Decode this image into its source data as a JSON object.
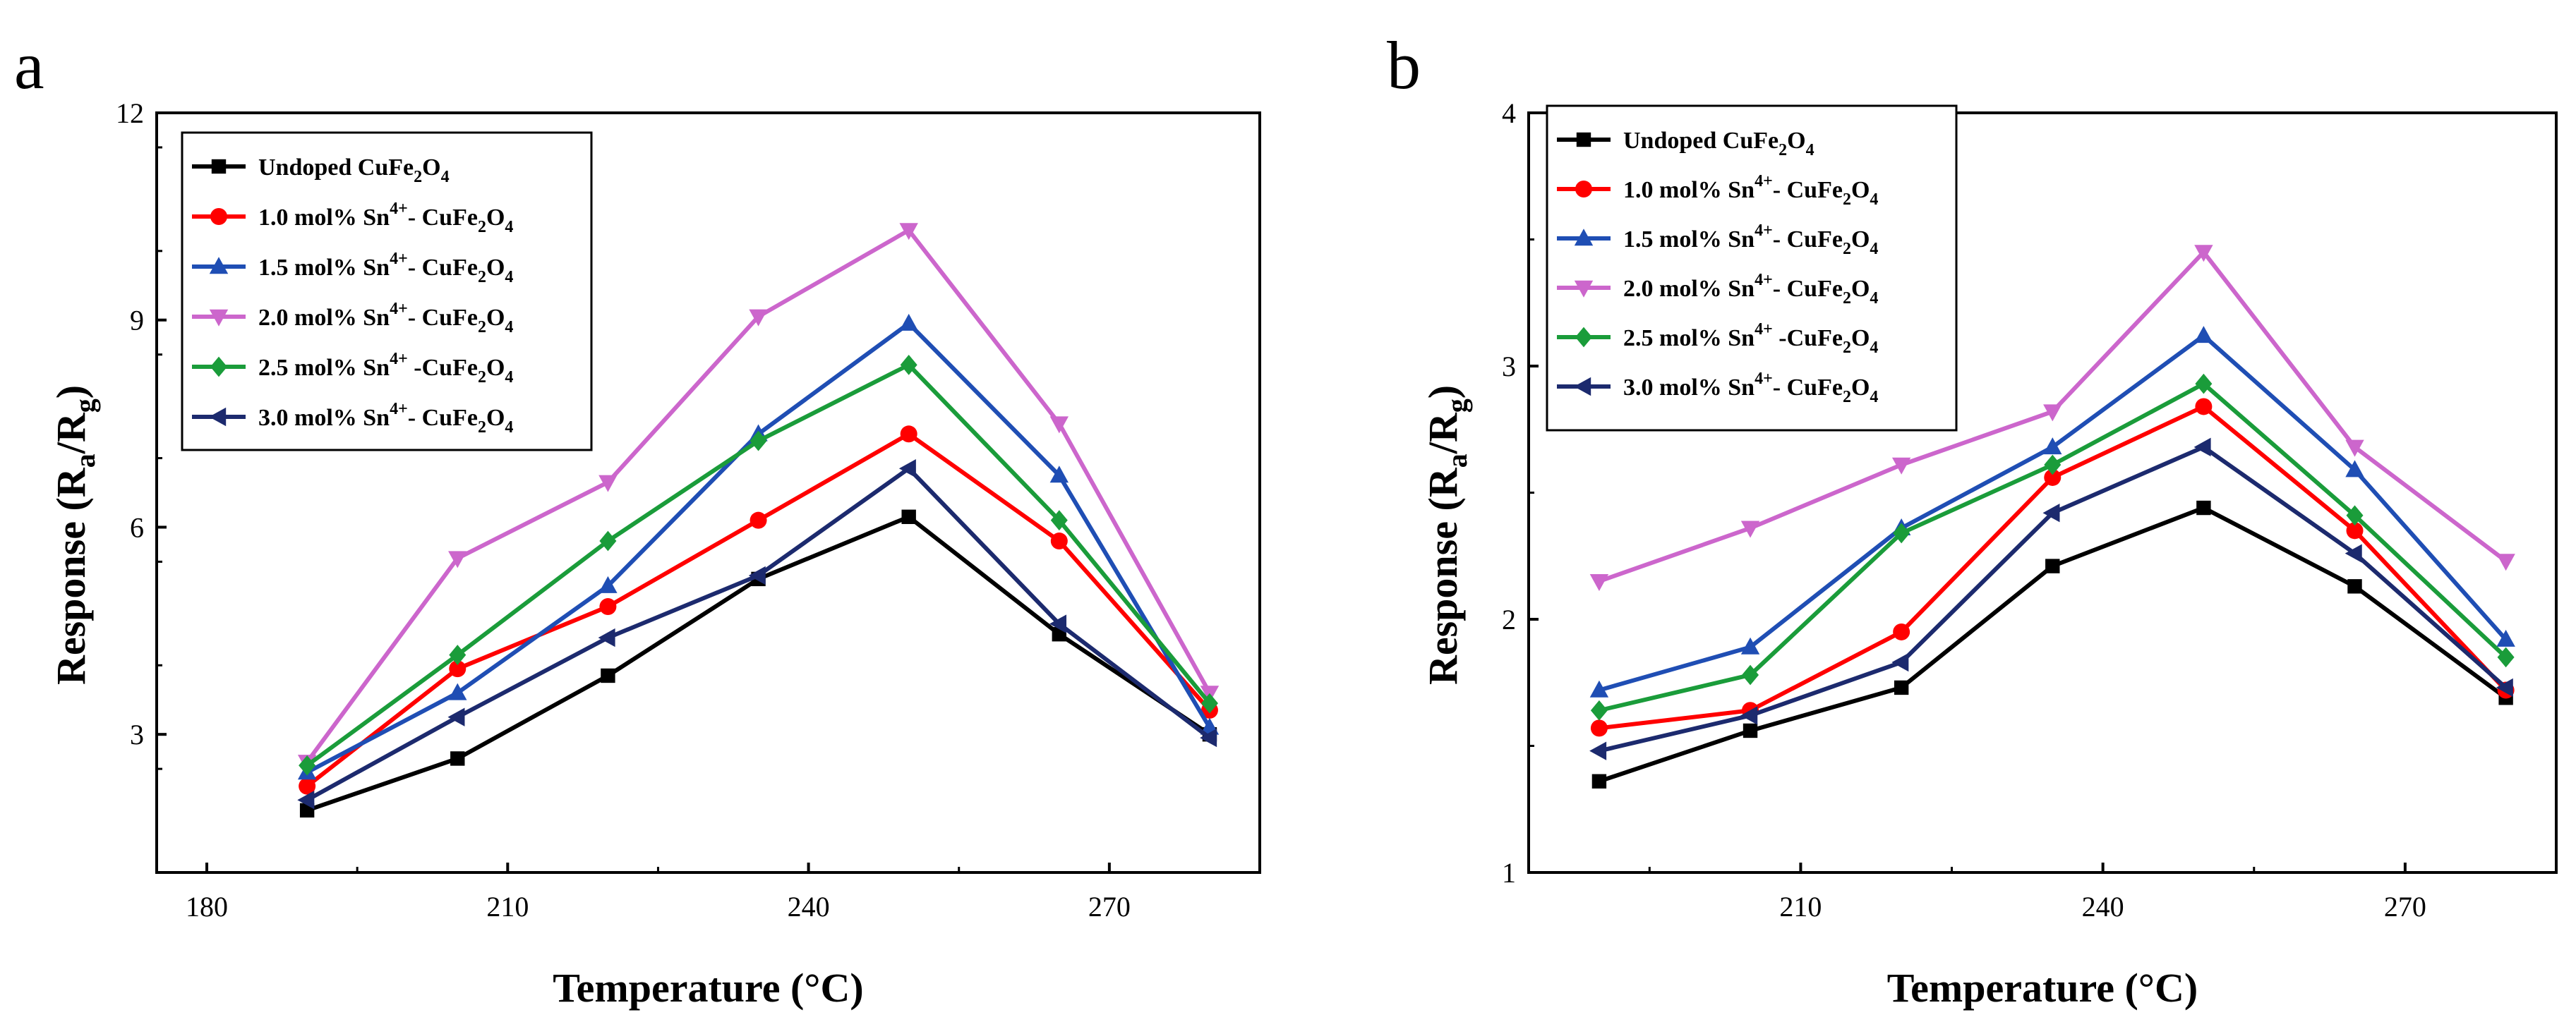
{
  "chart_data": [
    {
      "panel": "a",
      "type": "line",
      "xlabel": "Temperature (°C)",
      "ylabel_main": "Response (R",
      "ylabel_sub_a": "a",
      "ylabel_mid": "/R",
      "ylabel_sub_g": "g",
      "ylabel_end": ")",
      "xlim": [
        175,
        285
      ],
      "ylim": [
        1,
        12
      ],
      "xticks": [
        180,
        210,
        240,
        270
      ],
      "yticks": [
        3,
        6,
        9,
        12
      ],
      "x": [
        190,
        205,
        220,
        235,
        250,
        265,
        280
      ],
      "series": [
        {
          "name": "Undoped  CuFe2O4",
          "label_pre": "Undoped  CuFe",
          "sup": "",
          "label_mid": "",
          "color": "#000000",
          "marker": "square",
          "values": [
            1.9,
            2.65,
            3.85,
            5.25,
            6.15,
            4.45,
            3.0
          ]
        },
        {
          "name": "1.0 mol% Sn4+- CuFe2O4",
          "label_pre": "1.0 mol% Sn",
          "sup": "4+",
          "label_mid": "- CuFe",
          "color": "#ff0000",
          "marker": "circle",
          "values": [
            2.25,
            3.95,
            4.85,
            6.1,
            7.35,
            5.8,
            3.35
          ]
        },
        {
          "name": "1.5 mol% Sn4+- CuFe2O4",
          "label_pre": "1.5 mol% Sn",
          "sup": "4+",
          "label_mid": "- CuFe",
          "color": "#1f4eb4",
          "marker": "triangle-up",
          "values": [
            2.45,
            3.6,
            5.15,
            7.35,
            8.95,
            6.75,
            3.1
          ]
        },
        {
          "name": "2.0 mol% Sn4+- CuFe2O4",
          "label_pre": "2.0 mol% Sn",
          "sup": "4+",
          "label_mid": "- CuFe",
          "color": "#cc66cc",
          "marker": "triangle-down",
          "values": [
            2.6,
            5.55,
            6.65,
            9.05,
            10.3,
            7.5,
            3.6
          ]
        },
        {
          "name": "2.5 mol% Sn4+-CuFe2O4",
          "label_pre": "2.5 mol% Sn",
          "sup": "4+",
          "label_mid": " -CuFe",
          "color": "#1a9c3a",
          "marker": "diamond",
          "values": [
            2.55,
            4.15,
            5.8,
            7.25,
            8.35,
            6.1,
            3.45
          ]
        },
        {
          "name": "3.0 mol% Sn4+- CuFe2O4",
          "label_pre": "3.0 mol% Sn",
          "sup": "4+",
          "label_mid": "- CuFe",
          "color": "#1c2a6e",
          "marker": "triangle-left",
          "values": [
            2.05,
            3.25,
            4.4,
            5.3,
            6.85,
            4.6,
            2.95
          ]
        }
      ]
    },
    {
      "panel": "b",
      "type": "line",
      "xlabel": "Temperature (°C)",
      "ylabel_main": "Response (R",
      "ylabel_sub_a": "a",
      "ylabel_mid": "/R",
      "ylabel_sub_g": "g",
      "ylabel_end": ")",
      "xlim": [
        183,
        285
      ],
      "ylim": [
        1,
        4
      ],
      "xticks": [
        210,
        240,
        270
      ],
      "yticks": [
        1,
        2,
        3,
        4
      ],
      "x": [
        190,
        205,
        220,
        235,
        250,
        265,
        280
      ],
      "series": [
        {
          "name": "Undoped  CuFe2O4",
          "label_pre": "Undoped  CuFe",
          "sup": "",
          "label_mid": "",
          "color": "#000000",
          "marker": "square",
          "values": [
            1.36,
            1.56,
            1.73,
            2.21,
            2.44,
            2.13,
            1.69
          ]
        },
        {
          "name": "1.0 mol% Sn4+- CuFe2O4",
          "label_pre": "1.0 mol% Sn",
          "sup": "4+",
          "label_mid": "- CuFe",
          "color": "#ff0000",
          "marker": "circle",
          "values": [
            1.57,
            1.64,
            1.95,
            2.56,
            2.84,
            2.35,
            1.72
          ]
        },
        {
          "name": "1.5 mol% Sn4+- CuFe2O4",
          "label_pre": "1.5 mol% Sn",
          "sup": "4+",
          "label_mid": "- CuFe",
          "color": "#1f4eb4",
          "marker": "triangle-up",
          "values": [
            1.72,
            1.89,
            2.36,
            2.68,
            3.12,
            2.59,
            1.92
          ]
        },
        {
          "name": "2.0 mol% Sn4+- CuFe2O4",
          "label_pre": "2.0 mol% Sn",
          "sup": "4+",
          "label_mid": "- CuFe",
          "color": "#cc66cc",
          "marker": "triangle-down",
          "values": [
            2.15,
            2.36,
            2.61,
            2.82,
            3.45,
            2.68,
            2.23
          ]
        },
        {
          "name": "2.5 mol% Sn4+ -CuFe2O4",
          "label_pre": "2.5 mol% Sn",
          "sup": "4+",
          "label_mid": " -CuFe",
          "color": "#1a9c3a",
          "marker": "diamond",
          "values": [
            1.64,
            1.78,
            2.34,
            2.61,
            2.93,
            2.41,
            1.85
          ]
        },
        {
          "name": "3.0 mol% Sn4+- CuFe2O4",
          "label_pre": "3.0 mol% Sn",
          "sup": "4+",
          "label_mid": "- CuFe",
          "color": "#1c2a6e",
          "marker": "triangle-left",
          "values": [
            1.48,
            1.62,
            1.83,
            2.42,
            2.68,
            2.26,
            1.73
          ]
        }
      ]
    }
  ],
  "formula": {
    "sub2": "2",
    "o": "O",
    "sub4": "4"
  }
}
